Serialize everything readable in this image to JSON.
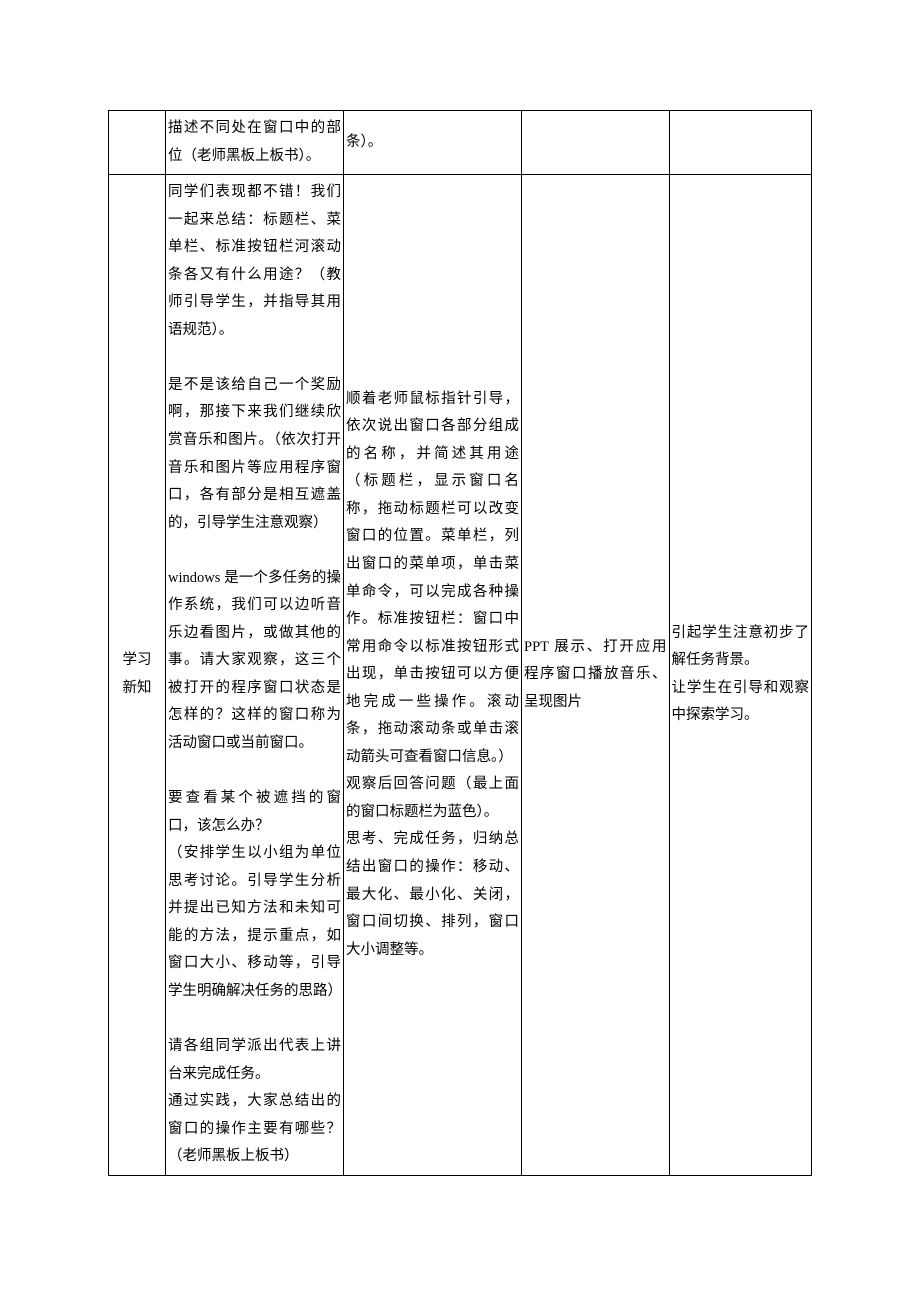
{
  "table": {
    "row1": {
      "col1": "",
      "col2": "描述不同处在窗口中的部位（老师黑板上板书）。",
      "col3": "条）。",
      "col4": "",
      "col5": ""
    },
    "row2": {
      "col1_line1": "学习",
      "col1_line2": "新知",
      "col2_p1": "同学们表现都不错！我们一起来总结：标题栏、菜单栏、标准按钮栏河滚动条各又有什么用途？（教师引导学生，并指导其用语规范）。",
      "col2_p2": "是不是该给自己一个奖励啊，那接下来我们继续欣赏音乐和图片。（依次打开音乐和图片等应用程序窗口，各有部分是相互遮盖的，引导学生注意观察）",
      "col2_p3": "windows 是一个多任务的操作系统，我们可以边听音乐边看图片，或做其他的事。请大家观察，这三个被打开的程序窗口状态是怎样的？这样的窗口称为活动窗口或当前窗口。",
      "col2_p4": "要查看某个被遮挡的窗口，该怎么办？",
      "col2_p5": "（安排学生以小组为单位思考讨论。引导学生分析并提出已知方法和未知可能的方法，提示重点，如窗口大小、移动等，引导学生明确解决任务的思路）",
      "col2_p6": "请各组同学派出代表上讲台来完成任务。",
      "col2_p7": "通过实践，大家总结出的窗口的操作主要有哪些？（老师黑板上板书）",
      "col3_p1": "顺着老师鼠标指针引导，依次说出窗口各部分组成的名称，并简述其用途（标题栏，显示窗口名称，拖动标题栏可以改变窗口的位置。菜单栏，列出窗口的菜单项，单击菜单命令，可以完成各种操作。标准按钮栏：窗口中常用命令以标准按钮形式出现，单击按钮可以方便地完成一些操作。滚动条，拖动滚动条或单击滚动箭头可查看窗口信息。）",
      "col3_p2": "观察后回答问题（最上面的窗口标题栏为蓝色）。",
      "col3_p3": "思考、完成任务，归纳总结出窗口的操作：移动、最大化、最小化、关闭，窗口间切换、排列，窗口大小调整等。",
      "col4_p1": "PPT 展示、打开应用程序窗口播放音乐、呈现图片",
      "col5_p1": "引起学生注意初步了解任务背景。",
      "col5_p2": "让学生在引导和观察中探索学习。"
    }
  }
}
